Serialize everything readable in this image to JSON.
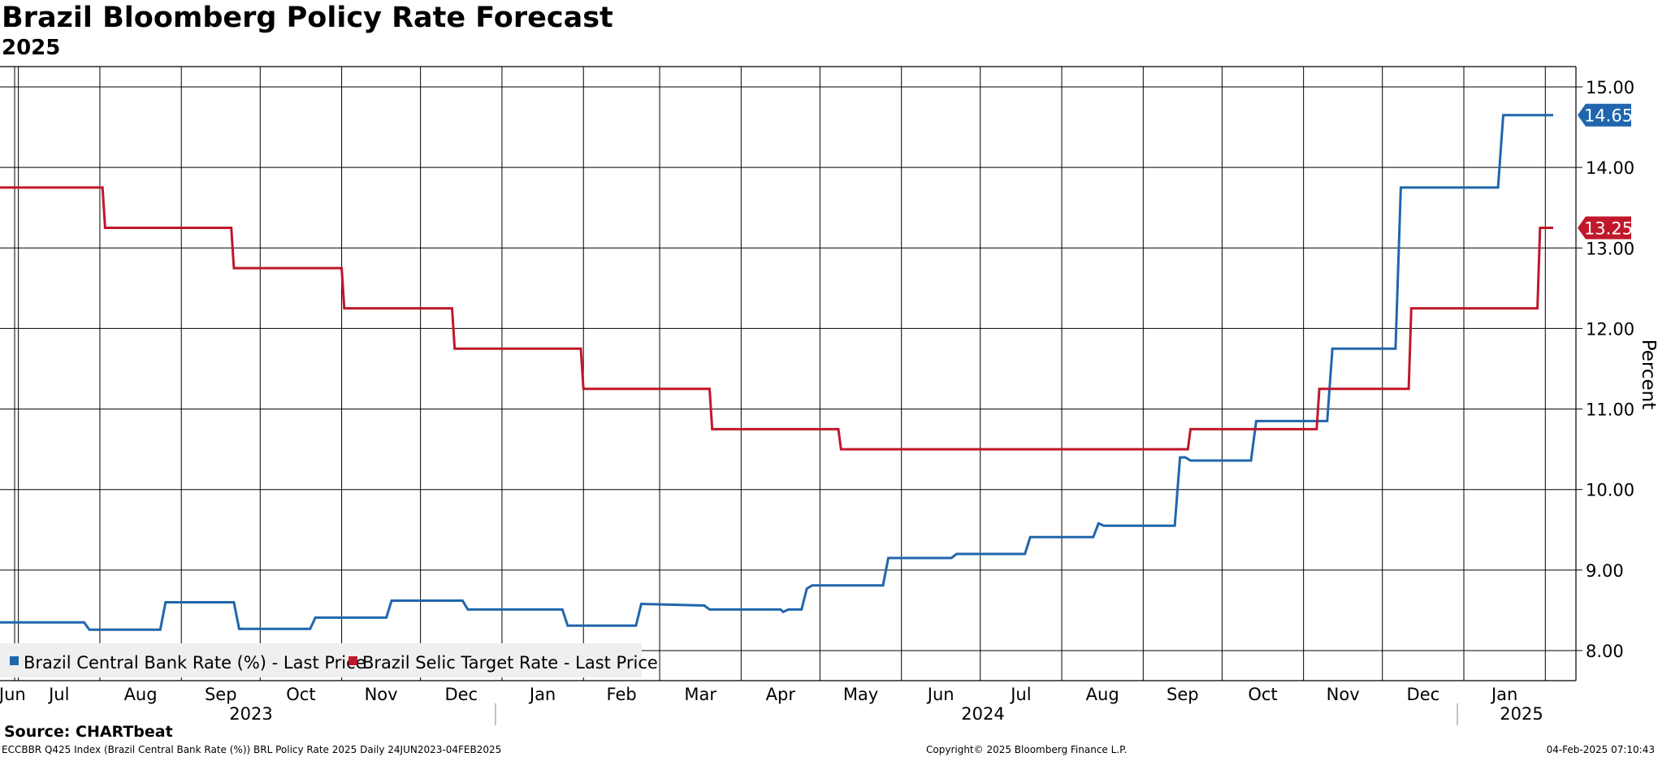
{
  "header": {
    "title": "Brazil Bloomberg Policy Rate Forecast",
    "subtitle": "2025"
  },
  "chart_data": {
    "type": "line",
    "ylabel": "Percent",
    "ylim": [
      7.6,
      15.2
    ],
    "yticks": [
      "15.00",
      "14.00",
      "13.00",
      "12.00",
      "11.00",
      "10.00",
      "9.00",
      "8.00"
    ],
    "x_month_labels": [
      "Jun",
      "Jul",
      "Aug",
      "Sep",
      "Oct",
      "Nov",
      "Dec",
      "Jan",
      "Feb",
      "Mar",
      "Apr",
      "May",
      "Jun",
      "Jul",
      "Aug",
      "Sep",
      "Oct",
      "Nov",
      "Dec",
      "Jan"
    ],
    "x_year_labels": [
      "2023",
      "2024",
      "2025"
    ],
    "x_range": [
      "2023-06-24",
      "2025-02-04"
    ],
    "grid": true,
    "legend_position": "bottom-left",
    "series": [
      {
        "name": "Brazil Central Bank Rate (%) - Last Price",
        "color": "#2166ac",
        "last_label": "14.65",
        "points": [
          [
            "2023-06-24",
            8.35
          ],
          [
            "2023-07-26",
            8.35
          ],
          [
            "2023-07-28",
            8.26
          ],
          [
            "2023-08-24",
            8.26
          ],
          [
            "2023-08-26",
            8.6
          ],
          [
            "2023-09-21",
            8.6
          ],
          [
            "2023-09-23",
            8.27
          ],
          [
            "2023-10-20",
            8.27
          ],
          [
            "2023-10-22",
            8.41
          ],
          [
            "2023-11-18",
            8.41
          ],
          [
            "2023-11-20",
            8.62
          ],
          [
            "2023-12-17",
            8.62
          ],
          [
            "2023-12-19",
            8.51
          ],
          [
            "2024-01-24",
            8.51
          ],
          [
            "2024-01-26",
            8.31
          ],
          [
            "2024-02-21",
            8.31
          ],
          [
            "2024-02-23",
            8.58
          ],
          [
            "2024-03-18",
            8.56
          ],
          [
            "2024-03-20",
            8.51
          ],
          [
            "2024-04-16",
            8.51
          ],
          [
            "2024-04-17",
            8.48
          ],
          [
            "2024-04-19",
            8.51
          ],
          [
            "2024-04-24",
            8.51
          ],
          [
            "2024-04-26",
            8.77
          ],
          [
            "2024-04-28",
            8.81
          ],
          [
            "2024-05-25",
            8.81
          ],
          [
            "2024-05-27",
            9.15
          ],
          [
            "2024-06-20",
            9.15
          ],
          [
            "2024-06-22",
            9.2
          ],
          [
            "2024-07-18",
            9.2
          ],
          [
            "2024-07-20",
            9.41
          ],
          [
            "2024-08-13",
            9.41
          ],
          [
            "2024-08-15",
            9.58
          ],
          [
            "2024-08-17",
            9.55
          ],
          [
            "2024-09-13",
            9.55
          ],
          [
            "2024-09-15",
            10.4
          ],
          [
            "2024-09-17",
            10.4
          ],
          [
            "2024-09-19",
            10.36
          ],
          [
            "2024-10-12",
            10.36
          ],
          [
            "2024-10-14",
            10.85
          ],
          [
            "2024-11-10",
            10.85
          ],
          [
            "2024-11-12",
            11.75
          ],
          [
            "2024-12-06",
            11.75
          ],
          [
            "2024-12-08",
            13.75
          ],
          [
            "2025-01-14",
            13.75
          ],
          [
            "2025-01-16",
            14.65
          ],
          [
            "2025-02-04",
            14.65
          ]
        ]
      },
      {
        "name": "Brazil Selic Target Rate - Last Price",
        "color": "#c0182a",
        "last_label": "13.25",
        "points": [
          [
            "2023-06-24",
            13.75
          ],
          [
            "2023-08-02",
            13.75
          ],
          [
            "2023-08-03",
            13.25
          ],
          [
            "2023-09-20",
            13.25
          ],
          [
            "2023-09-21",
            12.75
          ],
          [
            "2023-11-01",
            12.75
          ],
          [
            "2023-11-02",
            12.25
          ],
          [
            "2023-12-13",
            12.25
          ],
          [
            "2023-12-14",
            11.75
          ],
          [
            "2024-01-31",
            11.75
          ],
          [
            "2024-02-01",
            11.25
          ],
          [
            "2024-03-20",
            11.25
          ],
          [
            "2024-03-21",
            10.75
          ],
          [
            "2024-05-08",
            10.75
          ],
          [
            "2024-05-09",
            10.5
          ],
          [
            "2024-09-18",
            10.5
          ],
          [
            "2024-09-19",
            10.75
          ],
          [
            "2024-11-06",
            10.75
          ],
          [
            "2024-11-07",
            11.25
          ],
          [
            "2024-12-11",
            11.25
          ],
          [
            "2024-12-12",
            12.25
          ],
          [
            "2025-01-29",
            12.25
          ],
          [
            "2025-01-30",
            13.25
          ],
          [
            "2025-02-04",
            13.25
          ]
        ]
      }
    ]
  },
  "footer": {
    "source": "Source: CHARTbeat",
    "ticker_line": "ECCBBR Q425 Index (Brazil Central Bank Rate (%)) BRL Policy Rate 2025  Daily 24JUN2023-04FEB2025",
    "copyright": "Copyright© 2025 Bloomberg Finance L.P.",
    "timestamp": "04-Feb-2025 07:10:43"
  }
}
